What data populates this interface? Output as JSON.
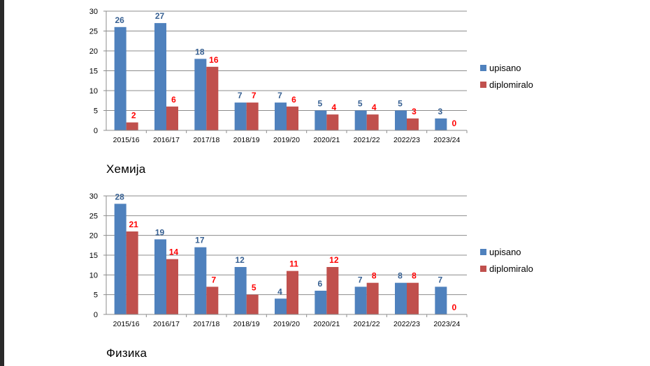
{
  "charts": [
    {
      "caption": "Хемија"
    },
    {
      "caption": "Физика"
    }
  ],
  "colors": {
    "upisano": "#4f81bd",
    "diplomiralo": "#c0504d",
    "upisano_label": "#376092",
    "diplomiralo_label": "#ff0000"
  },
  "chart_data": [
    {
      "type": "bar",
      "categories": [
        "2015/16",
        "2016/17",
        "2017/18",
        "2018/19",
        "2019/20",
        "2020/21",
        "2021/22",
        "2022/23",
        "2023/24"
      ],
      "series": [
        {
          "name": "upisano",
          "values": [
            26,
            27,
            18,
            7,
            7,
            5,
            5,
            5,
            3
          ]
        },
        {
          "name": "diplomiralo",
          "values": [
            2,
            6,
            16,
            7,
            6,
            4,
            4,
            3,
            0
          ]
        }
      ],
      "yticks": [
        "0",
        "5",
        "10",
        "15",
        "20",
        "25",
        "30"
      ],
      "ylim": [
        0,
        30
      ],
      "grid": true,
      "legend": "right"
    },
    {
      "type": "bar",
      "categories": [
        "2015/16",
        "2016/17",
        "2017/18",
        "2018/19",
        "2019/20",
        "2020/21",
        "2021/22",
        "2022/23",
        "2023/24"
      ],
      "series": [
        {
          "name": "upisano",
          "values": [
            28,
            19,
            17,
            12,
            4,
            6,
            7,
            8,
            7
          ]
        },
        {
          "name": "diplomiralo",
          "values": [
            21,
            14,
            7,
            5,
            11,
            12,
            8,
            8,
            0
          ]
        }
      ],
      "yticks": [
        "0",
        "5",
        "10",
        "15",
        "20",
        "25",
        "30"
      ],
      "ylim": [
        0,
        30
      ],
      "grid": true,
      "legend": "right"
    }
  ]
}
